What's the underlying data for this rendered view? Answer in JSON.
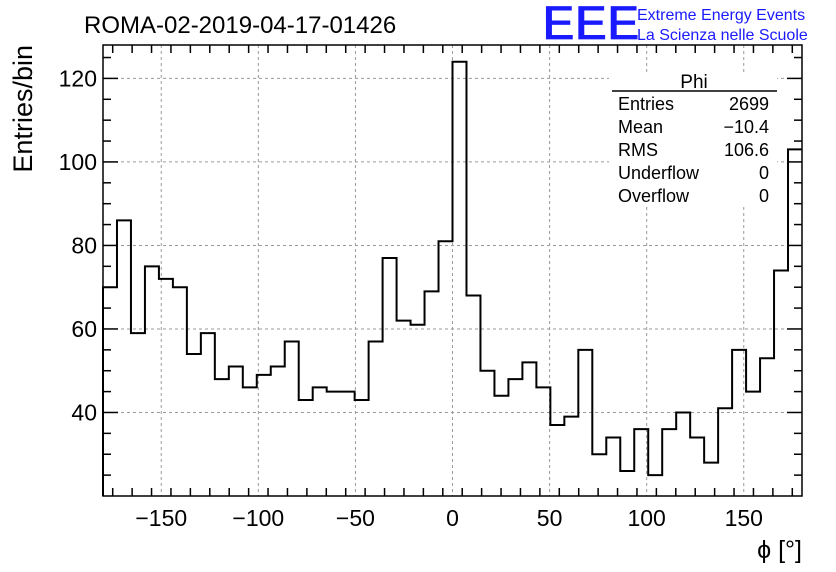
{
  "header": {
    "run_title": "ROMA-02-2019-04-17-01426",
    "logo_text": "EEE",
    "logo_line1": "Extreme Energy Events",
    "logo_line2": "La Scienza nelle Scuole",
    "logo_color": "#1a1aff"
  },
  "stats": {
    "name": "Phi",
    "rows": [
      {
        "label": "Entries",
        "value": "2699"
      },
      {
        "label": "Mean",
        "value": "−10.4"
      },
      {
        "label": "RMS",
        "value": "106.6"
      },
      {
        "label": "Underflow",
        "value": "0"
      },
      {
        "label": "Overflow",
        "value": "0"
      }
    ]
  },
  "chart_data": {
    "type": "histogram",
    "title": "",
    "xlabel": "ϕ [°]",
    "ylabel": "Entries/bin",
    "xlim": [
      -180,
      180
    ],
    "ylim": [
      20,
      128
    ],
    "grid": true,
    "bin_width": 7.2,
    "x_ticks": [
      -150,
      -100,
      -50,
      0,
      50,
      100,
      150
    ],
    "x_tick_labels": [
      "−150",
      "−100",
      "−50",
      "0",
      "50",
      "100",
      "150"
    ],
    "y_ticks": [
      40,
      60,
      80,
      100,
      120
    ],
    "y_tick_labels": [
      "40",
      "60",
      "80",
      "100",
      "120"
    ],
    "values": [
      70,
      86,
      59,
      75,
      72,
      70,
      54,
      59,
      48,
      51,
      46,
      49,
      51,
      57,
      43,
      46,
      45,
      45,
      43,
      57,
      77,
      62,
      61,
      69,
      81,
      124,
      68,
      50,
      44,
      48,
      52,
      46,
      37,
      39,
      55,
      30,
      34,
      26,
      36,
      25,
      36,
      40,
      34,
      28,
      41,
      55,
      45,
      53,
      74,
      103
    ]
  }
}
